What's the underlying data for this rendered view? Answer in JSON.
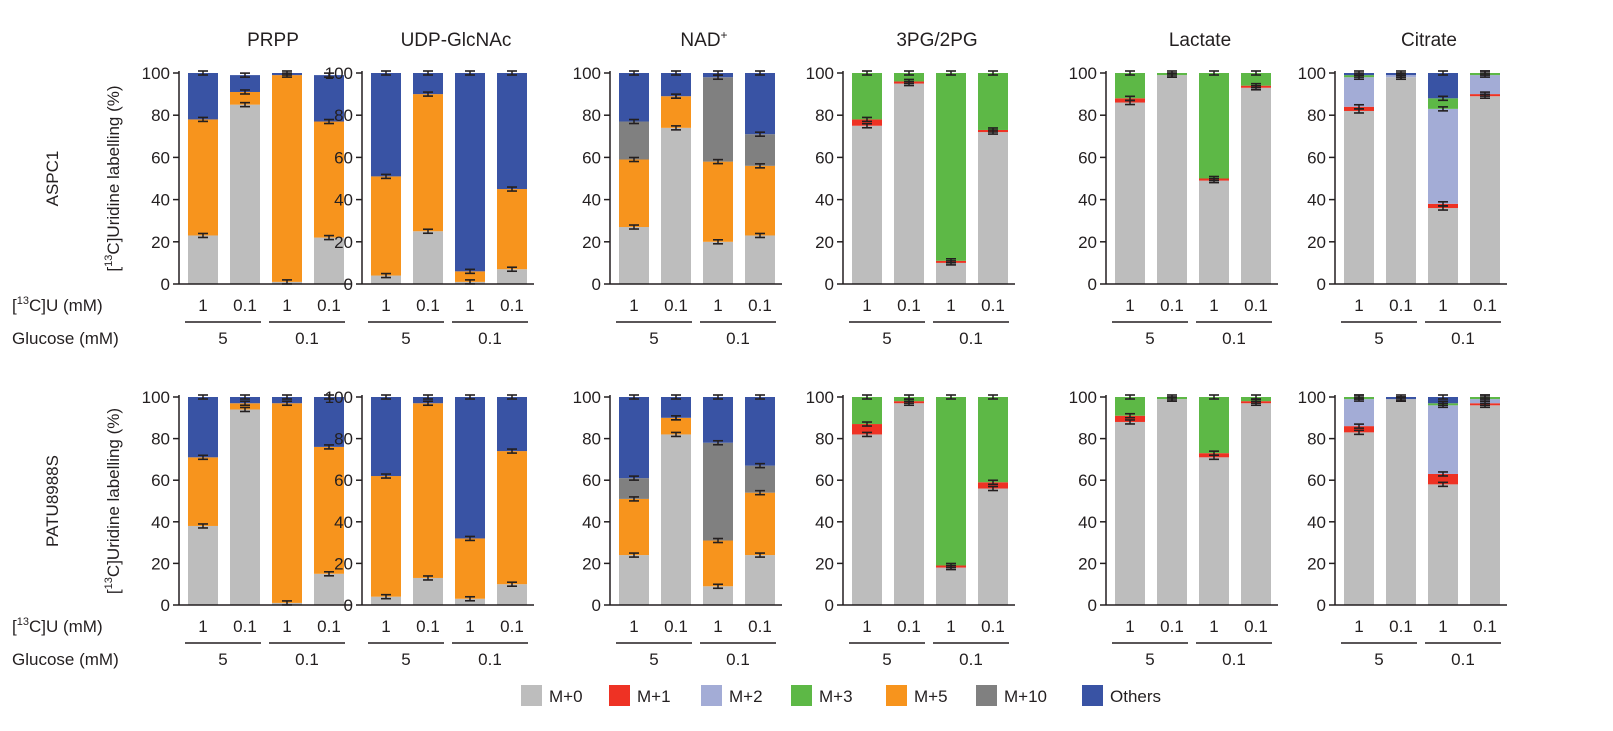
{
  "figure": {
    "row_labels": [
      "ASPC1",
      "PATU8988S"
    ],
    "ylabel": "[13C]Uridine labelling (%)",
    "ylabel_parts": {
      "pre": "[",
      "sup": "13",
      "post": "C]Uridine labelling (%)"
    },
    "uridine_row_label": "[13C]U (mM)",
    "uridine_label_parts": {
      "pre": "[",
      "sup": "13",
      "post": "C]U (mM)"
    },
    "glucose_row_label": "Glucose (mM)",
    "uridine_values": [
      "1",
      "0.1",
      "1",
      "0.1"
    ],
    "glucose_values": [
      "5",
      "0.1"
    ]
  },
  "legend": [
    {
      "label": "M+0",
      "color": "#bdbdbd"
    },
    {
      "label": "M+1",
      "color": "#ee3224"
    },
    {
      "label": "M+2",
      "color": "#a3acd6"
    },
    {
      "label": "M+3",
      "color": "#5db846"
    },
    {
      "label": "M+5",
      "color": "#f7941d"
    },
    {
      "label": "M+10",
      "color": "#808080"
    },
    {
      "label": "Others",
      "color": "#3953a4"
    }
  ],
  "chart_data": [
    {
      "type": "bar",
      "title": "PRPP",
      "cell_line": "ASPC1",
      "ylabel": "[13C]Uridine labelling (%)",
      "ylim": [
        0,
        100
      ],
      "yticks": [
        0,
        20,
        40,
        60,
        80,
        100
      ],
      "stacked": true,
      "categories": [
        "[13C]U 1 mM / Glucose 5 mM",
        "[13C]U 0.1 mM / Glucose 5 mM",
        "[13C]U 1 mM / Glucose 0.1 mM",
        "[13C]U 0.1 mM / Glucose 0.1 mM"
      ],
      "series": [
        {
          "name": "M+0",
          "values": [
            23,
            85,
            1,
            22
          ]
        },
        {
          "name": "M+5",
          "values": [
            55,
            6,
            98,
            55
          ]
        },
        {
          "name": "Others",
          "values": [
            22,
            8,
            1,
            22
          ]
        }
      ]
    },
    {
      "type": "bar",
      "title": "UDP-GlcNAc",
      "cell_line": "ASPC1",
      "ylim": [
        0,
        100
      ],
      "yticks": [
        0,
        20,
        40,
        60,
        80,
        100
      ],
      "stacked": true,
      "categories": [
        "[13C]U 1 mM / Glucose 5 mM",
        "[13C]U 0.1 mM / Glucose 5 mM",
        "[13C]U 1 mM / Glucose 0.1 mM",
        "[13C]U 0.1 mM / Glucose 0.1 mM"
      ],
      "series": [
        {
          "name": "M+0",
          "values": [
            4,
            25,
            1,
            7
          ]
        },
        {
          "name": "M+5",
          "values": [
            47,
            65,
            5,
            38
          ]
        },
        {
          "name": "Others",
          "values": [
            49,
            10,
            94,
            55
          ]
        }
      ]
    },
    {
      "type": "bar",
      "title": "NAD+",
      "cell_line": "ASPC1",
      "ylim": [
        0,
        100
      ],
      "yticks": [
        0,
        20,
        40,
        60,
        80,
        100
      ],
      "stacked": true,
      "categories": [
        "[13C]U 1 mM / Glucose 5 mM",
        "[13C]U 0.1 mM / Glucose 5 mM",
        "[13C]U 1 mM / Glucose 0.1 mM",
        "[13C]U 0.1 mM / Glucose 0.1 mM"
      ],
      "series": [
        {
          "name": "M+0",
          "values": [
            27,
            74,
            20,
            23
          ]
        },
        {
          "name": "M+5",
          "values": [
            32,
            15,
            38,
            33
          ]
        },
        {
          "name": "M+10",
          "values": [
            18,
            0,
            40,
            15
          ]
        },
        {
          "name": "Others",
          "values": [
            23,
            11,
            2,
            29
          ]
        }
      ]
    },
    {
      "type": "bar",
      "title": "3PG/2PG",
      "cell_line": "ASPC1",
      "ylim": [
        0,
        100
      ],
      "yticks": [
        0,
        20,
        40,
        60,
        80,
        100
      ],
      "stacked": true,
      "categories": [
        "[13C]U 1 mM / Glucose 5 mM",
        "[13C]U 0.1 mM / Glucose 5 mM",
        "[13C]U 1 mM / Glucose 0.1 mM",
        "[13C]U 0.1 mM / Glucose 0.1 mM"
      ],
      "series": [
        {
          "name": "M+0",
          "values": [
            75,
            95,
            10,
            72
          ]
        },
        {
          "name": "M+1",
          "values": [
            3,
            1,
            1,
            1
          ]
        },
        {
          "name": "M+3",
          "values": [
            22,
            4,
            89,
            27
          ]
        }
      ]
    },
    {
      "type": "bar",
      "title": "Lactate",
      "cell_line": "ASPC1",
      "ylim": [
        0,
        100
      ],
      "yticks": [
        0,
        20,
        40,
        60,
        80,
        100
      ],
      "stacked": true,
      "categories": [
        "[13C]U 1 mM / Glucose 5 mM",
        "[13C]U 0.1 mM / Glucose 5 mM",
        "[13C]U 1 mM / Glucose 0.1 mM",
        "[13C]U 0.1 mM / Glucose 0.1 mM"
      ],
      "series": [
        {
          "name": "M+0",
          "values": [
            86,
            99,
            49,
            93
          ]
        },
        {
          "name": "M+1",
          "values": [
            2,
            0,
            1,
            1
          ]
        },
        {
          "name": "M+3",
          "values": [
            12,
            1,
            50,
            6
          ]
        }
      ]
    },
    {
      "type": "bar",
      "title": "Citrate",
      "cell_line": "ASPC1",
      "ylim": [
        0,
        100
      ],
      "yticks": [
        0,
        20,
        40,
        60,
        80,
        100
      ],
      "stacked": true,
      "categories": [
        "[13C]U 1 mM / Glucose 5 mM",
        "[13C]U 0.1 mM / Glucose 5 mM",
        "[13C]U 1 mM / Glucose 0.1 mM",
        "[13C]U 0.1 mM / Glucose 0.1 mM"
      ],
      "series": [
        {
          "name": "M+0",
          "values": [
            82,
            98,
            36,
            89
          ]
        },
        {
          "name": "M+1",
          "values": [
            2,
            0,
            2,
            1
          ]
        },
        {
          "name": "M+2",
          "values": [
            14,
            1,
            45,
            9
          ]
        },
        {
          "name": "M+3",
          "values": [
            1,
            0,
            5,
            1
          ]
        },
        {
          "name": "Others",
          "values": [
            1,
            1,
            12,
            0
          ]
        }
      ]
    },
    {
      "type": "bar",
      "title": "PRPP",
      "cell_line": "PATU8988S",
      "ylim": [
        0,
        100
      ],
      "yticks": [
        0,
        20,
        40,
        60,
        80,
        100
      ],
      "stacked": true,
      "categories": [
        "[13C]U 1 mM / Glucose 5 mM",
        "[13C]U 0.1 mM / Glucose 5 mM",
        "[13C]U 1 mM / Glucose 0.1 mM",
        "[13C]U 0.1 mM / Glucose 0.1 mM"
      ],
      "series": [
        {
          "name": "M+0",
          "values": [
            38,
            94,
            1,
            15
          ]
        },
        {
          "name": "M+5",
          "values": [
            33,
            3,
            96,
            61
          ]
        },
        {
          "name": "Others",
          "values": [
            29,
            3,
            3,
            24
          ]
        }
      ]
    },
    {
      "type": "bar",
      "title": "UDP-GlcNAc",
      "cell_line": "PATU8988S",
      "ylim": [
        0,
        100
      ],
      "yticks": [
        0,
        20,
        40,
        60,
        80,
        100
      ],
      "stacked": true,
      "categories": [
        "[13C]U 1 mM / Glucose 5 mM",
        "[13C]U 0.1 mM / Glucose 5 mM",
        "[13C]U 1 mM / Glucose 0.1 mM",
        "[13C]U 0.1 mM / Glucose 0.1 mM"
      ],
      "series": [
        {
          "name": "M+0",
          "values": [
            4,
            13,
            3,
            10
          ]
        },
        {
          "name": "M+5",
          "values": [
            58,
            84,
            29,
            64
          ]
        },
        {
          "name": "Others",
          "values": [
            38,
            3,
            68,
            26
          ]
        }
      ]
    },
    {
      "type": "bar",
      "title": "NAD+",
      "cell_line": "PATU8988S",
      "ylim": [
        0,
        100
      ],
      "yticks": [
        0,
        20,
        40,
        60,
        80,
        100
      ],
      "stacked": true,
      "categories": [
        "[13C]U 1 mM / Glucose 5 mM",
        "[13C]U 0.1 mM / Glucose 5 mM",
        "[13C]U 1 mM / Glucose 0.1 mM",
        "[13C]U 0.1 mM / Glucose 0.1 mM"
      ],
      "series": [
        {
          "name": "M+0",
          "values": [
            24,
            82,
            9,
            24
          ]
        },
        {
          "name": "M+5",
          "values": [
            27,
            8,
            22,
            30
          ]
        },
        {
          "name": "M+10",
          "values": [
            10,
            0,
            47,
            13
          ]
        },
        {
          "name": "Others",
          "values": [
            39,
            10,
            22,
            33
          ]
        }
      ]
    },
    {
      "type": "bar",
      "title": "3PG/2PG",
      "cell_line": "PATU8988S",
      "ylim": [
        0,
        100
      ],
      "yticks": [
        0,
        20,
        40,
        60,
        80,
        100
      ],
      "stacked": true,
      "categories": [
        "[13C]U 1 mM / Glucose 5 mM",
        "[13C]U 0.1 mM / Glucose 5 mM",
        "[13C]U 1 mM / Glucose 0.1 mM",
        "[13C]U 0.1 mM / Glucose 0.1 mM"
      ],
      "series": [
        {
          "name": "M+0",
          "values": [
            82,
            97,
            18,
            56
          ]
        },
        {
          "name": "M+1",
          "values": [
            5,
            1,
            1,
            3
          ]
        },
        {
          "name": "M+3",
          "values": [
            13,
            2,
            81,
            41
          ]
        }
      ]
    },
    {
      "type": "bar",
      "title": "Lactate",
      "cell_line": "PATU8988S",
      "ylim": [
        0,
        100
      ],
      "yticks": [
        0,
        20,
        40,
        60,
        80,
        100
      ],
      "stacked": true,
      "categories": [
        "[13C]U 1 mM / Glucose 5 mM",
        "[13C]U 0.1 mM / Glucose 5 mM",
        "[13C]U 1 mM / Glucose 0.1 mM",
        "[13C]U 0.1 mM / Glucose 0.1 mM"
      ],
      "series": [
        {
          "name": "M+0",
          "values": [
            88,
            99,
            71,
            97
          ]
        },
        {
          "name": "M+1",
          "values": [
            3,
            0,
            2,
            1
          ]
        },
        {
          "name": "M+3",
          "values": [
            9,
            1,
            27,
            2
          ]
        }
      ]
    },
    {
      "type": "bar",
      "title": "Citrate",
      "cell_line": "PATU8988S",
      "ylim": [
        0,
        100
      ],
      "yticks": [
        0,
        20,
        40,
        60,
        80,
        100
      ],
      "stacked": true,
      "categories": [
        "[13C]U 1 mM / Glucose 5 mM",
        "[13C]U 0.1 mM / Glucose 5 mM",
        "[13C]U 1 mM / Glucose 0.1 mM",
        "[13C]U 0.1 mM / Glucose 0.1 mM"
      ],
      "series": [
        {
          "name": "M+0",
          "values": [
            83,
            99,
            58,
            96
          ]
        },
        {
          "name": "M+1",
          "values": [
            3,
            0,
            5,
            1
          ]
        },
        {
          "name": "M+2",
          "values": [
            13,
            0,
            33,
            2
          ]
        },
        {
          "name": "M+3",
          "values": [
            1,
            0,
            1,
            1
          ]
        },
        {
          "name": "Others",
          "values": [
            0,
            1,
            3,
            0
          ]
        }
      ]
    }
  ]
}
